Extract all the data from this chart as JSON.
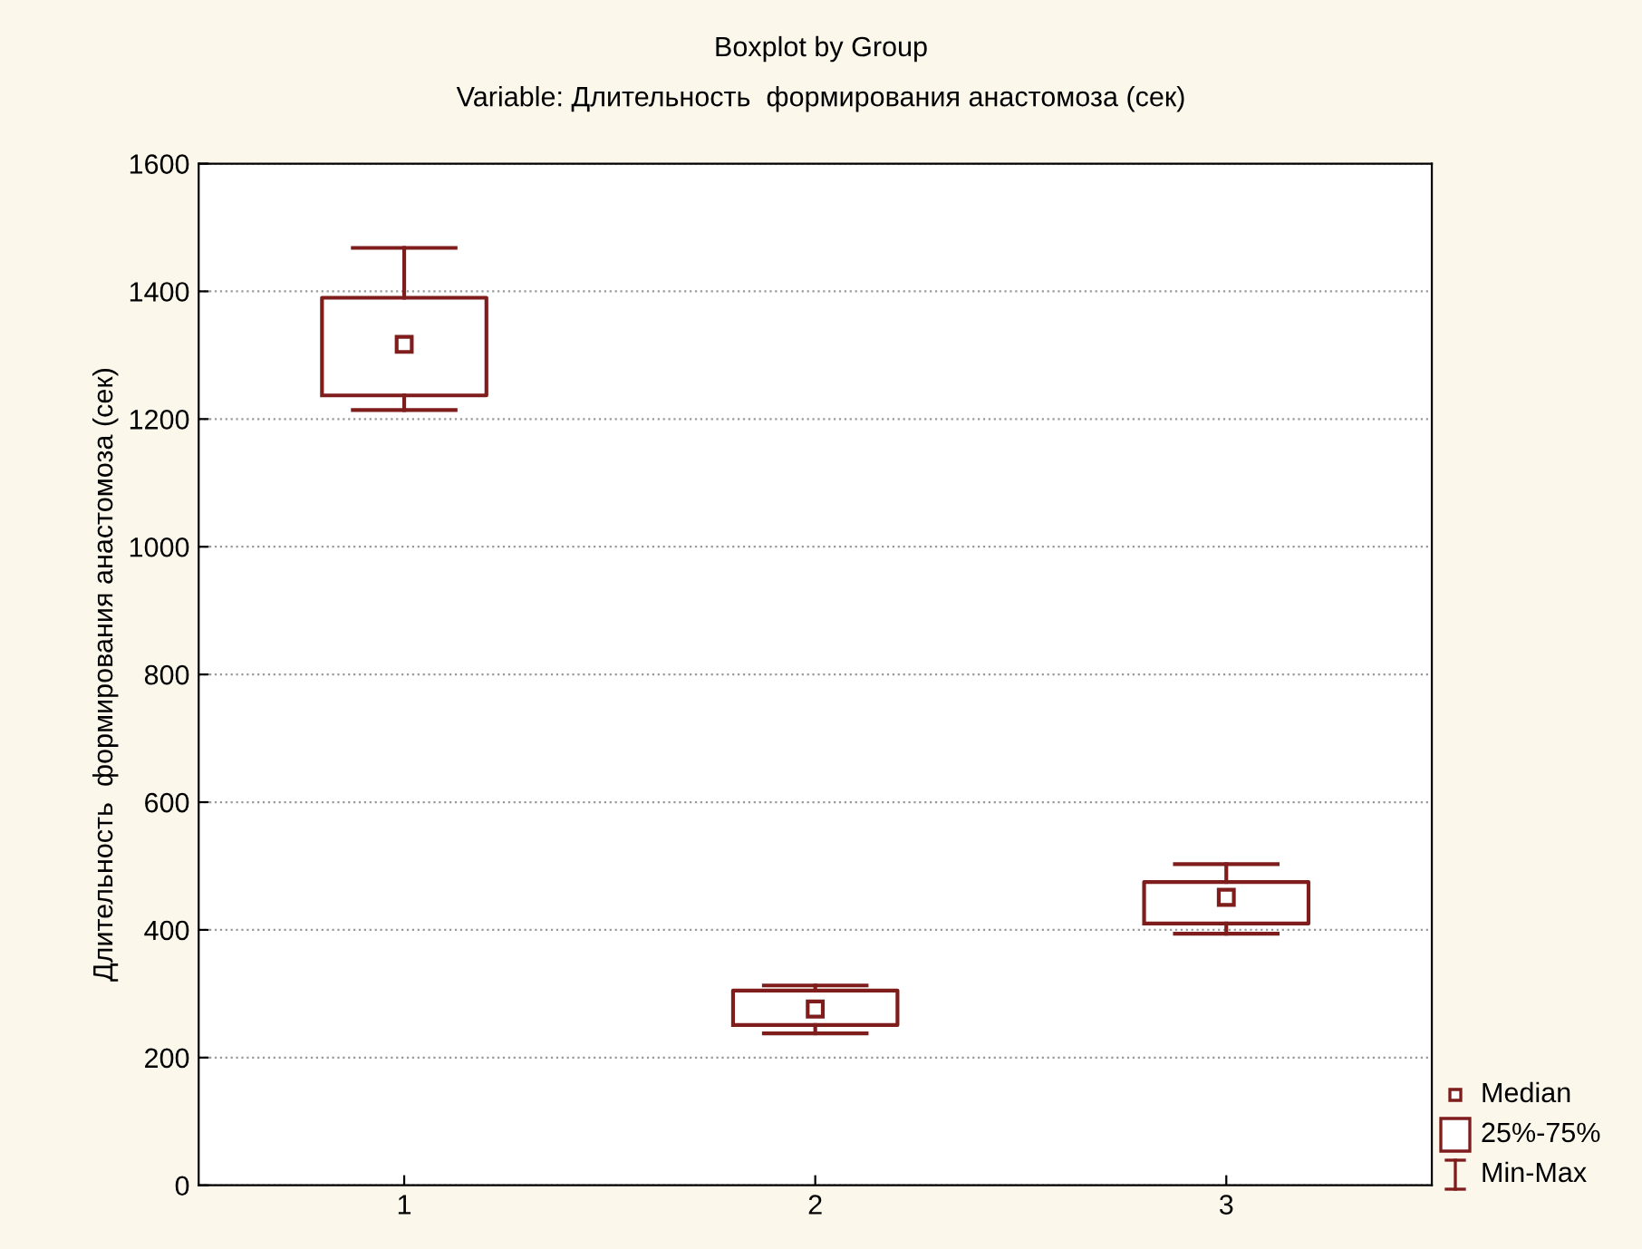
{
  "chart_data": {
    "type": "box",
    "title": "Boxplot by Group",
    "subtitle": "Variable: Длительность  формирования анастомоза (сек)",
    "ylabel": "Длительность  формирования анастомоза (сек)",
    "categories": [
      "1",
      "2",
      "3"
    ],
    "series": [
      {
        "color": "#7f1d1d",
        "boxes": [
          {
            "low": 1214,
            "q1": 1237,
            "median": 1317,
            "q3": 1390,
            "high": 1468
          },
          {
            "low": 238,
            "q1": 251,
            "median": 276,
            "q3": 305,
            "high": 313
          },
          {
            "low": 394,
            "q1": 410,
            "median": 451,
            "q3": 475,
            "high": 503
          }
        ]
      }
    ],
    "ylim": [
      0,
      1600
    ],
    "yticks": [
      0,
      200,
      400,
      600,
      800,
      1000,
      1200,
      1400,
      1600
    ],
    "grid": "y",
    "marker": "square",
    "annotations": [
      "Median",
      "25%-75%",
      "Min-Max"
    ]
  }
}
